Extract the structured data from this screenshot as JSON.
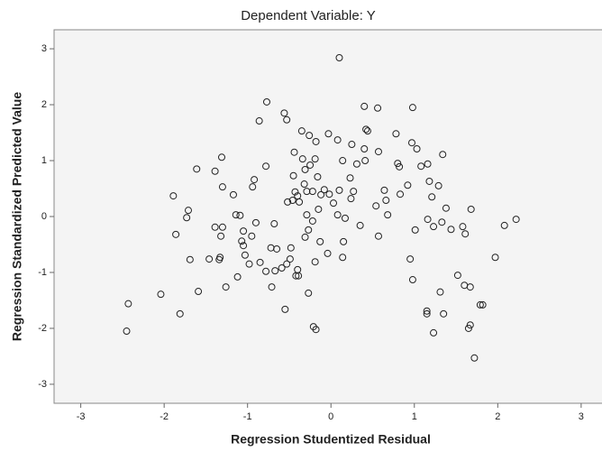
{
  "chart_data": {
    "type": "scatter",
    "title": "Dependent Variable: Y",
    "x_label": "Regression Studentized Residual",
    "y_label": "Regression Standardized Predicted Value",
    "xlim": [
      -3.32,
      3.25
    ],
    "ylim": [
      -3.34,
      3.34
    ],
    "xticks": [
      -3,
      -2,
      -1,
      0,
      1,
      2,
      3
    ],
    "yticks": [
      -3,
      -2,
      -1,
      0,
      1,
      2,
      3
    ],
    "color": "#222222",
    "x": [
      0.1,
      -0.77,
      -0.56,
      -0.53,
      -0.86,
      0.4,
      0.56,
      0.98,
      -0.35,
      -0.26,
      -0.18,
      -0.03,
      0.08,
      0.42,
      0.44,
      0.25,
      0.4,
      0.14,
      0.31,
      0.41,
      0.57,
      0.78,
      0.8,
      0.82,
      0.97,
      1.03,
      1.08,
      1.16,
      1.34,
      0.92,
      1.18,
      1.29,
      1.21,
      1.38,
      1.16,
      1.23,
      1.33,
      1.44,
      1.58,
      1.61,
      1.68,
      2.08,
      2.22,
      1.97,
      1.52,
      1.6,
      1.67,
      1.82,
      1.79,
      1.31,
      1.15,
      1.15,
      1.35,
      1.23,
      1.67,
      1.65,
      1.72,
      0.98,
      0.95,
      1.01,
      0.57,
      0.15,
      0.14,
      -0.04,
      -0.19,
      -0.13,
      -0.27,
      -0.21,
      -0.18,
      -0.55,
      -0.4,
      -0.42,
      -0.39,
      -0.49,
      -0.53,
      -0.59,
      -0.67,
      -0.71,
      -0.78,
      -0.85,
      -0.98,
      -0.72,
      -0.65,
      -0.48,
      -1.05,
      -1.03,
      -1.12,
      -1.26,
      -1.46,
      -1.34,
      -1.33,
      -1.59,
      -1.69,
      -2.04,
      -1.81,
      -2.43,
      -2.45,
      -1.86,
      -1.73,
      -1.71,
      -1.89,
      -1.61,
      -1.39,
      -1.31,
      -1.3,
      -1.17,
      -1.14,
      -1.09,
      -1.05,
      -1.07,
      -1.3,
      -1.39,
      -1.32,
      -0.95,
      -0.9,
      -0.78,
      -0.92,
      -0.94,
      -0.68,
      -0.52,
      -0.45,
      -0.44,
      -0.34,
      -0.31,
      -0.32,
      -0.25,
      -0.19,
      -0.29,
      -0.22,
      -0.16,
      -0.4,
      -0.43,
      -0.46,
      -0.38,
      -0.29,
      -0.27,
      -0.22,
      -0.15,
      -0.12,
      -0.08,
      -0.02,
      0.03,
      0.08,
      0.17,
      0.1,
      0.24,
      0.27,
      0.23,
      0.35,
      0.54,
      0.64,
      0.66,
      0.68,
      0.83,
      -0.31
    ],
    "values": [
      2.84,
      2.05,
      1.85,
      1.73,
      1.71,
      1.97,
      1.94,
      1.95,
      1.53,
      1.45,
      1.34,
      1.48,
      1.37,
      1.56,
      1.53,
      1.29,
      1.21,
      1.0,
      0.94,
      1.0,
      1.16,
      1.48,
      0.95,
      0.89,
      1.32,
      1.21,
      0.9,
      0.94,
      1.11,
      0.56,
      0.63,
      0.55,
      0.35,
      0.15,
      -0.05,
      -0.18,
      -0.1,
      -0.23,
      -0.18,
      -0.31,
      0.13,
      -0.16,
      -0.05,
      -0.73,
      -1.05,
      -1.23,
      -1.26,
      -1.58,
      -1.58,
      -1.35,
      -1.69,
      -1.74,
      -1.74,
      -2.08,
      -1.94,
      -2.0,
      -2.53,
      -1.13,
      -0.76,
      -0.24,
      -0.35,
      -0.45,
      -0.73,
      -0.66,
      -0.81,
      -0.45,
      -1.37,
      -1.97,
      -2.02,
      -1.66,
      -0.95,
      -1.06,
      -1.06,
      -0.76,
      -0.85,
      -0.92,
      -0.97,
      -1.26,
      -0.98,
      -0.82,
      -0.85,
      -0.56,
      -0.58,
      -0.56,
      -0.52,
      -0.69,
      -1.08,
      -1.26,
      -0.76,
      -0.77,
      -0.73,
      -1.34,
      -0.77,
      -1.39,
      -1.74,
      -1.56,
      -2.05,
      -0.32,
      -0.02,
      0.11,
      0.37,
      0.85,
      0.81,
      1.06,
      0.53,
      0.39,
      0.03,
      0.02,
      -0.26,
      -0.44,
      -0.19,
      -0.19,
      -0.35,
      -0.35,
      -0.11,
      0.9,
      0.66,
      0.53,
      -0.13,
      0.26,
      0.73,
      1.15,
      1.03,
      0.84,
      0.58,
      0.92,
      1.03,
      0.45,
      0.45,
      0.71,
      0.37,
      0.44,
      0.29,
      0.26,
      0.03,
      -0.24,
      -0.08,
      0.13,
      0.39,
      0.48,
      0.4,
      0.24,
      0.03,
      -0.03,
      0.47,
      0.32,
      0.45,
      0.69,
      -0.16,
      0.19,
      0.47,
      0.29,
      0.03,
      0.4,
      -0.37
    ]
  }
}
